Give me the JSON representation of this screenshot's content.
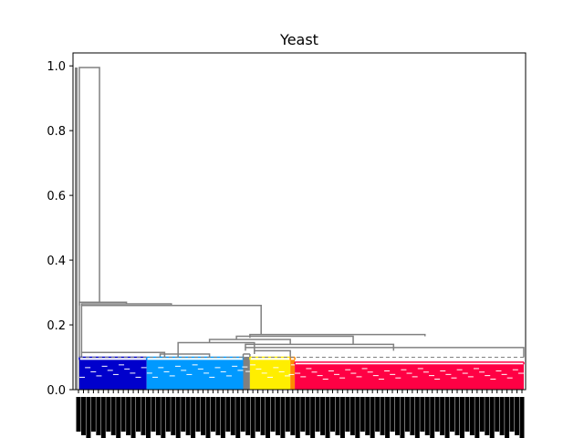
{
  "chart_data": {
    "type": "dendrogram",
    "title": "Yeast",
    "xlabel": "",
    "ylabel": "",
    "ylim": [
      0,
      1.04
    ],
    "yticks": [
      "0.0",
      "0.2",
      "0.4",
      "0.6",
      "0.8",
      "1.0"
    ],
    "ytick_values": [
      0.0,
      0.2,
      0.4,
      0.6,
      0.8,
      1.0
    ],
    "grid": false,
    "cut_threshold": 0.1,
    "link_color": "#808080",
    "clusters": [
      {
        "color": "#0000cc",
        "x_range": [
          0.01,
          0.16
        ],
        "height": 0.1
      },
      {
        "color": "#0099ff",
        "x_range": [
          0.16,
          0.375
        ],
        "height": 0.1
      },
      {
        "color": "#808080",
        "x_range": [
          0.375,
          0.39
        ],
        "height": 0.11
      },
      {
        "color": "#ffee00",
        "x_range": [
          0.39,
          0.48
        ],
        "height": 0.1
      },
      {
        "color": "#ff8800",
        "x_range": [
          0.48,
          0.49
        ],
        "height": 0.1
      },
      {
        "color": "#ff0044",
        "x_range": [
          0.49,
          1.0
        ],
        "height": 0.085
      }
    ],
    "upper_links": [
      {
        "x": [
          0.01,
          0.055
        ],
        "h": 0.995,
        "children_h": [
          0,
          0.27
        ]
      },
      {
        "x": [
          0.01,
          0.115
        ],
        "h": 0.27,
        "children_h": [
          0.26,
          0.265
        ]
      },
      {
        "x": [
          0.015,
          0.215
        ],
        "h": 0.265,
        "children_h": [
          0.26,
          0.26
        ]
      },
      {
        "x": [
          0.015,
          0.415
        ],
        "h": 0.26,
        "children_h": [
          0.115,
          0.17
        ]
      },
      {
        "x": [
          0.39,
          0.78
        ],
        "h": 0.17,
        "children_h": [
          0.16,
          0.165
        ]
      },
      {
        "x": [
          0.36,
          0.62
        ],
        "h": 0.165,
        "children_h": [
          0.155,
          0.14
        ]
      },
      {
        "x": [
          0.3,
          0.48
        ],
        "h": 0.155,
        "children_h": [
          0.145,
          0.14
        ]
      },
      {
        "x": [
          0.23,
          0.4
        ],
        "h": 0.145,
        "children_h": [
          0.1,
          0.12
        ]
      },
      {
        "x": [
          0.38,
          0.71
        ],
        "h": 0.14,
        "children_h": [
          0.13,
          0.12
        ]
      },
      {
        "x": [
          0.38,
          1.0
        ],
        "h": 0.13,
        "children_h": [
          0.12,
          0.1
        ]
      },
      {
        "x": [
          0.4,
          0.48
        ],
        "h": 0.12,
        "children_h": [
          0.11,
          0.1
        ]
      },
      {
        "x": [
          0.015,
          0.2
        ],
        "h": 0.115,
        "children_h": [
          0.1,
          0.1
        ]
      },
      {
        "x": [
          0.19,
          0.3
        ],
        "h": 0.11,
        "children_h": [
          0.1,
          0.1
        ]
      }
    ]
  }
}
